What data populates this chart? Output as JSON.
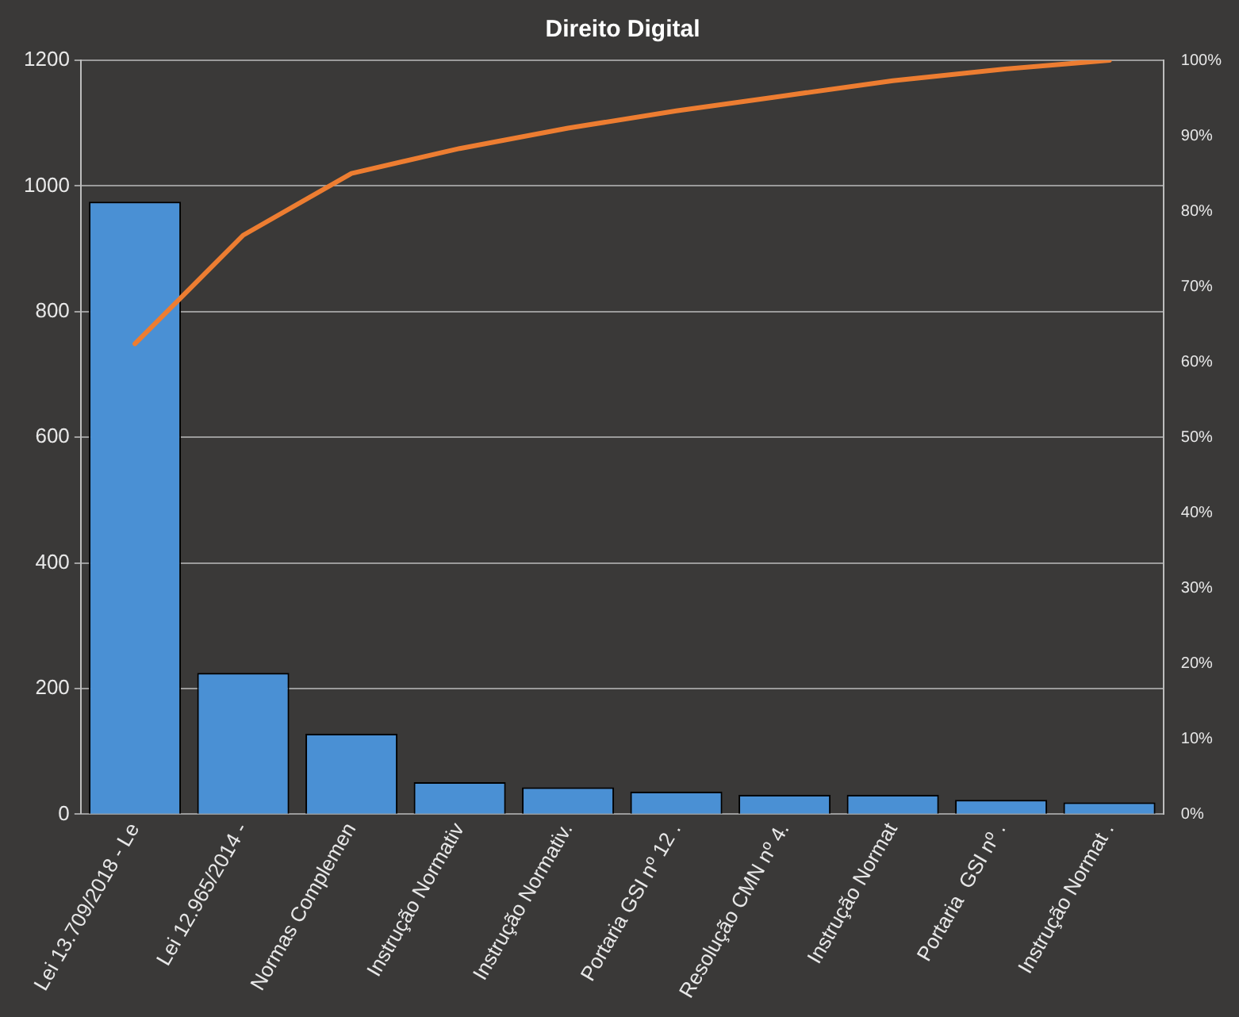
{
  "chart_data": {
    "type": "bar",
    "title": "Direito Digital",
    "categories": [
      "Lei 13.709/2018 - Le",
      "Lei 12.965/2014 -",
      "Normas Complemen",
      "Instrução Normativ",
      "Instrução Normativ.",
      "Portaria GSI nº 12 .",
      "Resolução CMN nº 4.",
      "Instrução Normat",
      "Portaria  GSI nº .",
      "Instrução Normat ."
    ],
    "series": [
      {
        "color": "#4a90d4",
        "values": [
          975,
          225,
          128,
          51,
          43,
          36,
          31,
          31,
          23,
          19
        ]
      },
      {
        "type": "line",
        "axis": "y2",
        "color": "#ed7d31",
        "values": [
          62.4,
          76.8,
          85.0,
          88.3,
          91.0,
          93.3,
          95.3,
          97.3,
          98.8,
          100
        ]
      }
    ],
    "ylim": [
      0,
      1200
    ],
    "yticks": [
      0,
      200,
      400,
      600,
      800,
      1000,
      1200
    ],
    "y2lim": [
      0,
      100
    ],
    "y2ticks": [
      {
        "value": 0,
        "label": "0%"
      },
      {
        "value": 10,
        "label": "10%"
      },
      {
        "value": 20,
        "label": "20%"
      },
      {
        "value": 30,
        "label": "30%"
      },
      {
        "value": 40,
        "label": "40%"
      },
      {
        "value": 50,
        "label": "50%"
      },
      {
        "value": 60,
        "label": "60%"
      },
      {
        "value": 70,
        "label": "70%"
      },
      {
        "value": 80,
        "label": "80%"
      },
      {
        "value": 90,
        "label": "90%"
      },
      {
        "value": 100,
        "label": "100%"
      }
    ],
    "grid": "y",
    "marker": "none"
  }
}
